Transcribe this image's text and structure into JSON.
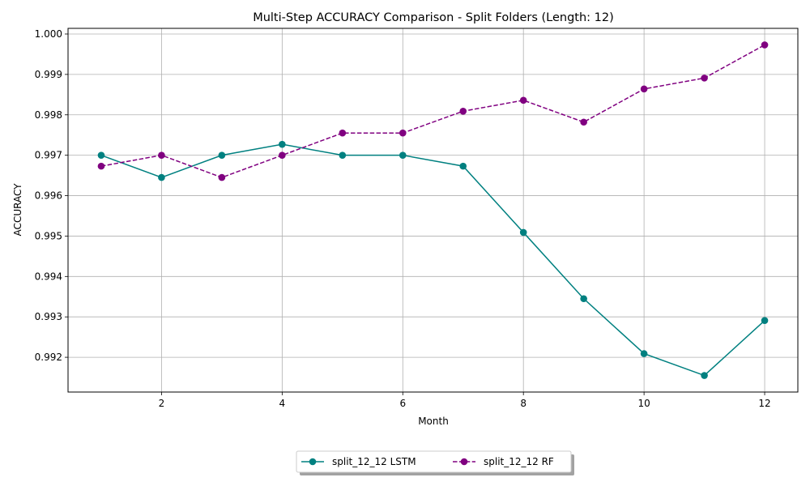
{
  "chart_data": {
    "type": "line",
    "title": "Multi-Step ACCURACY Comparison - Split Folders (Length: 12)",
    "xlabel": "Month",
    "ylabel": "ACCURACY",
    "x": [
      1,
      2,
      3,
      4,
      5,
      6,
      7,
      8,
      9,
      10,
      11,
      12
    ],
    "xlim": [
      0.45,
      12.55
    ],
    "ylim": [
      0.99114,
      1.00014
    ],
    "xticks": [
      2,
      4,
      6,
      8,
      10,
      12
    ],
    "xtick_labels": [
      "2",
      "4",
      "6",
      "8",
      "10",
      "12"
    ],
    "yticks": [
      0.992,
      0.993,
      0.994,
      0.995,
      0.996,
      0.997,
      0.998,
      0.999,
      1.0
    ],
    "ytick_labels": [
      "0.992",
      "0.993",
      "0.994",
      "0.995",
      "0.996",
      "0.997",
      "0.998",
      "0.999",
      "1.000"
    ],
    "grid": true,
    "legend_placement": "bottom-center",
    "series": [
      {
        "name": "split_12_12 LSTM",
        "color": "#008080",
        "line_style": "solid",
        "marker": "circle",
        "values": [
          0.997,
          0.99645,
          0.997,
          0.99727,
          0.997,
          0.997,
          0.99673,
          0.99509,
          0.99345,
          0.99209,
          0.99155,
          0.99291
        ]
      },
      {
        "name": "split_12_12 RF",
        "color": "#800080",
        "line_style": "dashed",
        "marker": "circle",
        "values": [
          0.99673,
          0.997,
          0.99645,
          0.997,
          0.99755,
          0.99755,
          0.99809,
          0.99836,
          0.99782,
          0.99864,
          0.99891,
          0.99973
        ]
      }
    ]
  }
}
